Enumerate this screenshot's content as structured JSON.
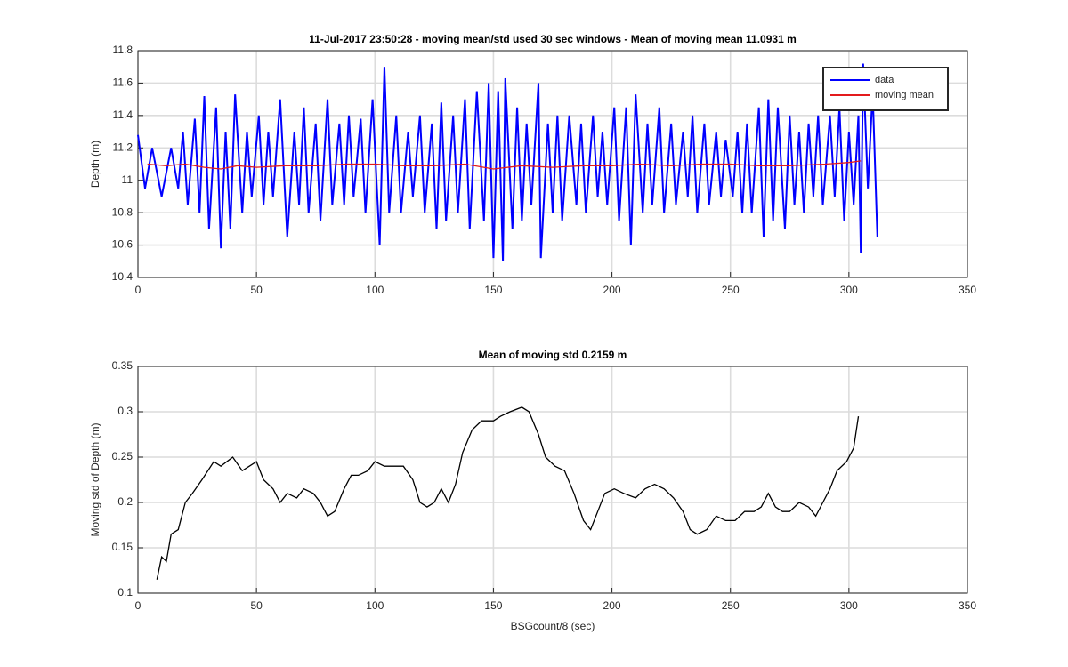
{
  "chart_data": [
    {
      "type": "line",
      "title": "11-Jul-2017 23:50:28 - moving mean/std used 30 sec windows - Mean of moving mean 11.0931 m",
      "ylabel": "Depth (m)",
      "xlim": [
        0,
        350
      ],
      "ylim": [
        10.4,
        11.8
      ],
      "xticks": [
        0,
        50,
        100,
        150,
        200,
        250,
        300,
        350
      ],
      "yticks": [
        10.4,
        10.6,
        10.8,
        11,
        11.2,
        11.4,
        11.6,
        11.8
      ],
      "grid": true,
      "legend": "northeast",
      "series": [
        {
          "name": "data",
          "color": "#0000ff",
          "x": [
            0,
            3,
            6,
            8,
            10,
            14,
            17,
            19,
            21,
            24,
            26,
            28,
            30,
            33,
            35,
            37,
            39,
            41,
            44,
            46,
            48,
            51,
            53,
            55,
            57,
            60,
            63,
            66,
            68,
            70,
            72,
            75,
            77,
            80,
            82,
            85,
            87,
            89,
            91,
            94,
            96,
            99,
            102,
            104,
            106,
            109,
            111,
            114,
            116,
            119,
            121,
            124,
            126,
            128,
            130,
            133,
            135,
            138,
            140,
            143,
            146,
            148,
            150,
            152,
            154,
            155,
            158,
            160,
            162,
            164,
            166,
            169,
            170,
            173,
            175,
            177,
            179,
            182,
            185,
            187,
            189,
            192,
            194,
            196,
            198,
            201,
            203,
            206,
            208,
            210,
            213,
            215,
            217,
            220,
            222,
            225,
            227,
            230,
            232,
            234,
            236,
            239,
            241,
            244,
            246,
            248,
            251,
            253,
            255,
            257,
            259,
            262,
            264,
            266,
            268,
            270,
            273,
            275,
            277,
            279,
            281,
            283,
            285,
            287,
            289,
            292,
            294,
            296,
            298,
            300,
            302,
            304,
            305,
            306,
            308,
            310,
            312
          ],
          "values": [
            11.28,
            10.95,
            11.2,
            11.05,
            10.9,
            11.2,
            10.95,
            11.3,
            10.85,
            11.38,
            10.8,
            11.52,
            10.7,
            11.45,
            10.58,
            11.3,
            10.7,
            11.53,
            10.8,
            11.3,
            10.9,
            11.4,
            10.85,
            11.3,
            10.9,
            11.5,
            10.65,
            11.3,
            10.85,
            11.45,
            10.8,
            11.35,
            10.75,
            11.5,
            10.85,
            11.35,
            10.85,
            11.4,
            10.9,
            11.38,
            10.8,
            11.5,
            10.6,
            11.7,
            10.8,
            11.4,
            10.8,
            11.3,
            10.9,
            11.4,
            10.8,
            11.35,
            10.7,
            11.48,
            10.75,
            11.4,
            10.8,
            11.5,
            10.7,
            11.55,
            10.75,
            11.6,
            10.52,
            11.55,
            10.5,
            11.63,
            10.7,
            11.45,
            10.75,
            11.35,
            10.85,
            11.6,
            10.52,
            11.35,
            10.8,
            11.4,
            10.75,
            11.4,
            10.85,
            11.35,
            10.8,
            11.4,
            10.9,
            11.3,
            10.85,
            11.45,
            10.75,
            11.45,
            10.6,
            11.53,
            10.8,
            11.35,
            10.85,
            11.45,
            10.8,
            11.35,
            10.85,
            11.3,
            10.9,
            11.4,
            10.8,
            11.35,
            10.85,
            11.3,
            10.9,
            11.25,
            10.9,
            11.3,
            10.8,
            11.35,
            10.8,
            11.45,
            10.65,
            11.5,
            10.75,
            11.45,
            10.7,
            11.4,
            10.85,
            11.3,
            10.8,
            11.35,
            10.9,
            11.4,
            10.85,
            11.4,
            10.9,
            11.45,
            10.75,
            11.3,
            10.85,
            11.4,
            10.55,
            11.72,
            10.95,
            11.55,
            10.65
          ]
        },
        {
          "name": "moving mean",
          "color": "#e31a1c",
          "x": [
            4,
            12,
            20,
            28,
            35,
            42,
            50,
            62,
            75,
            88,
            100,
            112,
            125,
            138,
            150,
            162,
            175,
            188,
            200,
            212,
            225,
            238,
            250,
            262,
            275,
            290,
            300,
            305
          ],
          "values": [
            11.1,
            11.09,
            11.1,
            11.08,
            11.07,
            11.09,
            11.08,
            11.09,
            11.09,
            11.1,
            11.1,
            11.09,
            11.09,
            11.1,
            11.07,
            11.09,
            11.08,
            11.09,
            11.09,
            11.1,
            11.09,
            11.1,
            11.1,
            11.09,
            11.09,
            11.1,
            11.11,
            11.12
          ]
        }
      ]
    },
    {
      "type": "line",
      "title": "Mean of moving std 0.2159 m",
      "xlabel": "BSGcount/8 (sec)",
      "ylabel": "Moving std of Depth (m)",
      "xlim": [
        0,
        350
      ],
      "ylim": [
        0.1,
        0.35
      ],
      "xticks": [
        0,
        50,
        100,
        150,
        200,
        250,
        300,
        350
      ],
      "yticks": [
        0.1,
        0.15,
        0.2,
        0.25,
        0.3,
        0.35
      ],
      "grid": true,
      "series": [
        {
          "name": "moving std",
          "color": "#000000",
          "x": [
            8,
            10,
            12,
            14,
            17,
            20,
            23,
            27,
            32,
            35,
            40,
            44,
            47,
            50,
            53,
            57,
            60,
            63,
            67,
            70,
            74,
            77,
            80,
            83,
            87,
            90,
            93,
            97,
            100,
            104,
            108,
            112,
            116,
            119,
            122,
            125,
            128,
            131,
            134,
            137,
            141,
            145,
            150,
            153,
            157,
            162,
            165,
            169,
            172,
            176,
            180,
            184,
            188,
            191,
            194,
            197,
            201,
            205,
            210,
            214,
            218,
            222,
            226,
            230,
            233,
            236,
            240,
            244,
            248,
            252,
            256,
            260,
            263,
            266,
            269,
            272,
            275,
            279,
            283,
            286,
            289,
            292,
            295,
            299,
            302,
            304
          ],
          "values": [
            0.115,
            0.14,
            0.135,
            0.165,
            0.17,
            0.2,
            0.21,
            0.225,
            0.245,
            0.24,
            0.25,
            0.235,
            0.24,
            0.245,
            0.225,
            0.215,
            0.2,
            0.21,
            0.205,
            0.215,
            0.21,
            0.2,
            0.185,
            0.19,
            0.215,
            0.23,
            0.23,
            0.235,
            0.245,
            0.24,
            0.24,
            0.24,
            0.225,
            0.2,
            0.195,
            0.2,
            0.215,
            0.2,
            0.22,
            0.255,
            0.28,
            0.29,
            0.29,
            0.295,
            0.3,
            0.305,
            0.3,
            0.275,
            0.25,
            0.24,
            0.235,
            0.21,
            0.18,
            0.17,
            0.19,
            0.21,
            0.215,
            0.21,
            0.205,
            0.215,
            0.22,
            0.215,
            0.205,
            0.19,
            0.17,
            0.165,
            0.17,
            0.185,
            0.18,
            0.18,
            0.19,
            0.19,
            0.195,
            0.21,
            0.195,
            0.19,
            0.19,
            0.2,
            0.195,
            0.185,
            0.2,
            0.215,
            0.235,
            0.245,
            0.26,
            0.295
          ]
        }
      ]
    }
  ]
}
